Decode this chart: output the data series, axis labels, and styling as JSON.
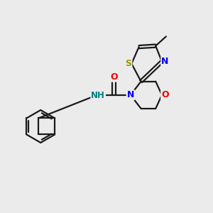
{
  "background_color": "#ebebeb",
  "bond_color": "#1a1a1a",
  "atom_colors": {
    "N": "#0000ee",
    "O": "#ee0000",
    "S": "#999900",
    "NH": "#008080",
    "C": "#1a1a1a"
  },
  "bond_width": 1.6,
  "figsize": [
    3.0,
    3.0
  ],
  "dpi": 100
}
